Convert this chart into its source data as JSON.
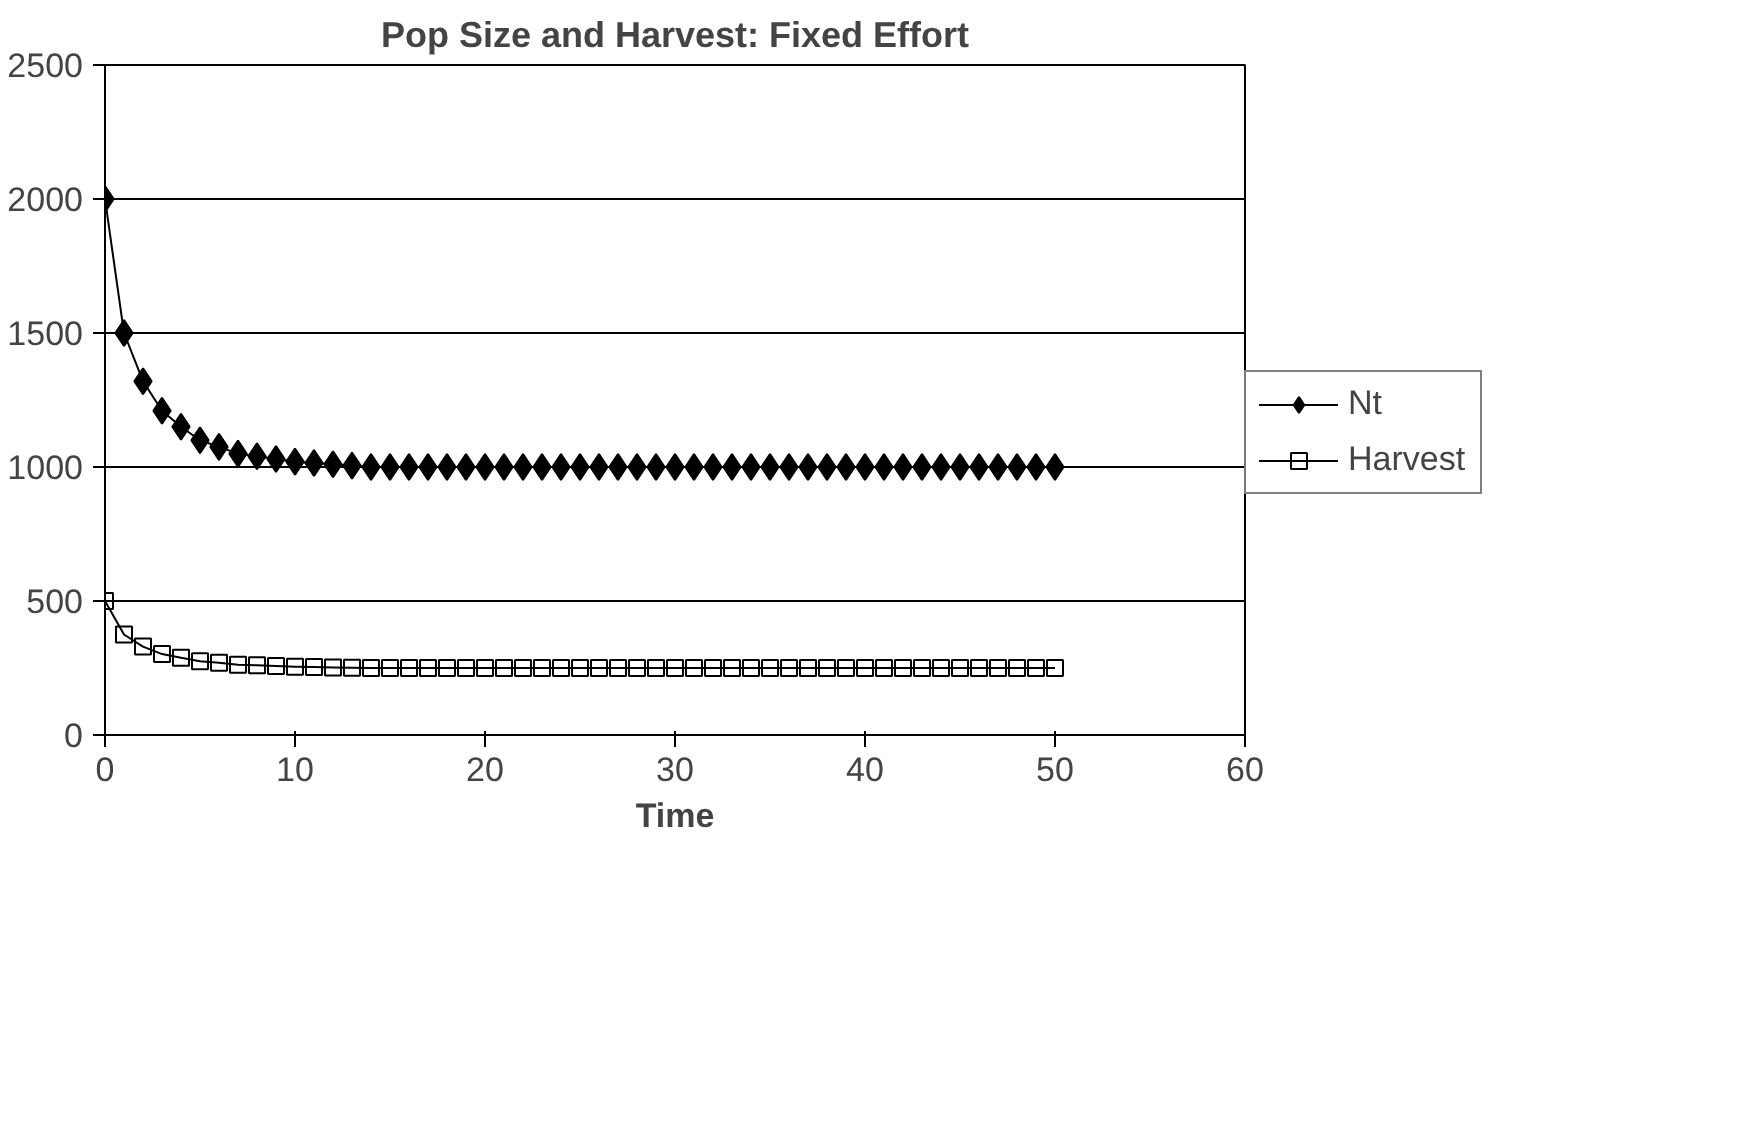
{
  "chart_data": {
    "type": "line",
    "title": "Pop Size and Harvest: Fixed Effort",
    "xlabel": "Time",
    "x": [
      0,
      1,
      2,
      3,
      4,
      5,
      6,
      7,
      8,
      9,
      10,
      11,
      12,
      13,
      14,
      15,
      16,
      17,
      18,
      19,
      20,
      21,
      22,
      23,
      24,
      25,
      26,
      27,
      28,
      29,
      30,
      31,
      32,
      33,
      34,
      35,
      36,
      37,
      38,
      39,
      40,
      41,
      42,
      43,
      44,
      45,
      46,
      47,
      48,
      49,
      50
    ],
    "series": [
      {
        "name": "Nt",
        "color": "#000000",
        "marker": "diamond",
        "values": [
          2000,
          1500,
          1320,
          1210,
          1150,
          1100,
          1075,
          1050,
          1040,
          1030,
          1020,
          1015,
          1010,
          1005,
          1000,
          1000,
          1000,
          1000,
          1000,
          1000,
          1000,
          1000,
          1000,
          1000,
          1000,
          1000,
          1000,
          1000,
          1000,
          1000,
          1000,
          1000,
          1000,
          1000,
          1000,
          1000,
          1000,
          1000,
          1000,
          1000,
          1000,
          1000,
          1000,
          1000,
          1000,
          1000,
          1000,
          1000,
          1000,
          1000,
          1000
        ]
      },
      {
        "name": "Harvest",
        "color": "#000000",
        "marker": "square",
        "values": [
          500,
          375,
          330,
          302,
          288,
          275,
          270,
          262,
          260,
          257,
          255,
          254,
          252,
          251,
          250,
          250,
          250,
          250,
          250,
          250,
          250,
          250,
          250,
          250,
          250,
          250,
          250,
          250,
          250,
          250,
          250,
          250,
          250,
          250,
          250,
          250,
          250,
          250,
          250,
          250,
          250,
          250,
          250,
          250,
          250,
          250,
          250,
          250,
          250,
          250,
          250
        ]
      }
    ],
    "xlim": [
      0,
      60
    ],
    "xticks": [
      0,
      10,
      20,
      30,
      40,
      50,
      60
    ],
    "ylim": [
      0,
      2500
    ],
    "yticks": [
      0,
      500,
      1000,
      1500,
      2000,
      2500
    ],
    "grid": "y",
    "legend": "right"
  }
}
